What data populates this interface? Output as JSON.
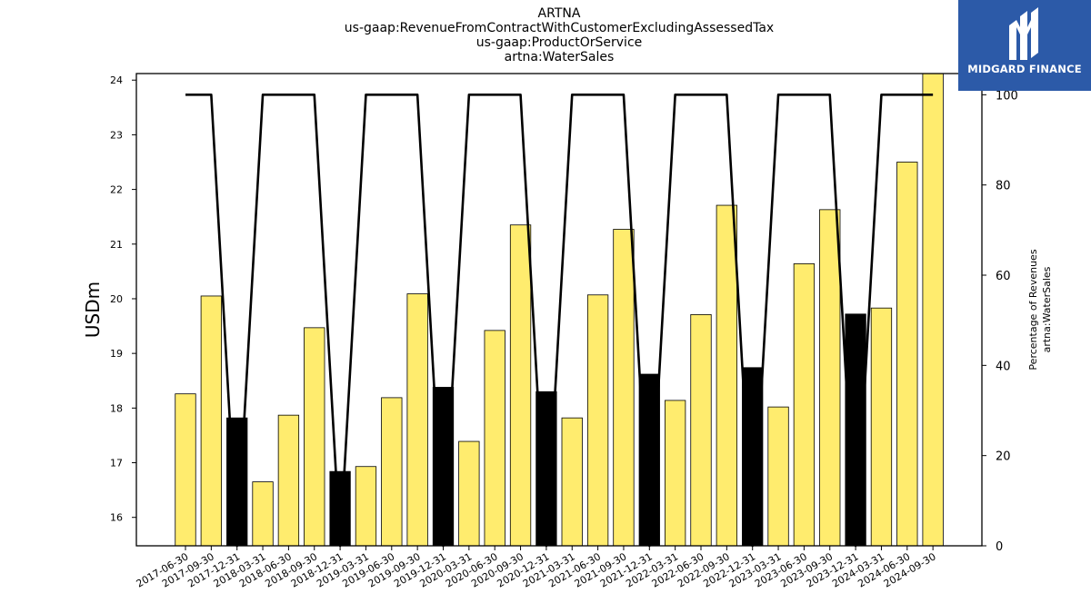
{
  "title_lines": [
    "ARTNA",
    "us-gaap:RevenueFromContractWithCustomerExcludingAssessedTax",
    "us-gaap:ProductOrService",
    "artna:WaterSales"
  ],
  "logo": {
    "text": "MIDGARD FINANCE",
    "background": "#2c5aa8"
  },
  "colors": {
    "bar_default": "#ffec6e",
    "bar_q4": "#000000",
    "line": "#000000"
  },
  "chart_data": {
    "type": "bar",
    "categories": [
      "2017-06-30",
      "2017-09-30",
      "2017-12-31",
      "2018-03-31",
      "2018-06-30",
      "2018-09-30",
      "2018-12-31",
      "2019-03-31",
      "2019-06-30",
      "2019-09-30",
      "2019-12-31",
      "2020-03-31",
      "2020-06-30",
      "2020-09-30",
      "2020-12-31",
      "2021-03-31",
      "2021-06-30",
      "2021-09-30",
      "2021-12-31",
      "2022-03-31",
      "2022-06-30",
      "2022-09-30",
      "2022-12-31",
      "2023-03-31",
      "2023-06-30",
      "2023-09-30",
      "2023-12-31",
      "2024-03-31",
      "2024-06-30",
      "2024-09-30"
    ],
    "values": [
      18.26,
      20.05,
      17.82,
      16.65,
      17.87,
      19.47,
      16.84,
      16.93,
      18.19,
      20.09,
      18.38,
      17.39,
      19.42,
      21.35,
      18.3,
      17.82,
      20.07,
      21.27,
      18.62,
      18.14,
      19.71,
      21.71,
      18.74,
      18.02,
      20.64,
      21.63,
      19.72,
      19.83,
      22.5,
      24.12
    ],
    "bar_colors": [
      "#ffec6e",
      "#ffec6e",
      "#000000",
      "#ffec6e",
      "#ffec6e",
      "#ffec6e",
      "#000000",
      "#ffec6e",
      "#ffec6e",
      "#ffec6e",
      "#000000",
      "#ffec6e",
      "#ffec6e",
      "#ffec6e",
      "#000000",
      "#ffec6e",
      "#ffec6e",
      "#ffec6e",
      "#000000",
      "#ffec6e",
      "#ffec6e",
      "#ffec6e",
      "#000000",
      "#ffec6e",
      "#ffec6e",
      "#ffec6e",
      "#000000",
      "#ffec6e",
      "#ffec6e",
      "#ffec6e"
    ],
    "line_percentage": [
      100,
      100,
      0,
      100,
      100,
      100,
      0,
      100,
      100,
      100,
      0,
      100,
      100,
      100,
      0,
      100,
      100,
      100,
      0,
      100,
      100,
      100,
      0,
      100,
      100,
      100,
      0,
      100,
      100,
      100
    ],
    "ylabel": "USDm",
    "ylabel_right": [
      "Percentage of Revenues",
      "artna:WaterSales"
    ],
    "ylim": [
      15.48,
      24.12
    ],
    "yticks": [
      16,
      17,
      18,
      19,
      20,
      21,
      22,
      23,
      24
    ],
    "ylim_right": [
      0,
      104.7
    ],
    "yticks_right": [
      0,
      20,
      40,
      60,
      80,
      100
    ],
    "grid": false
  }
}
